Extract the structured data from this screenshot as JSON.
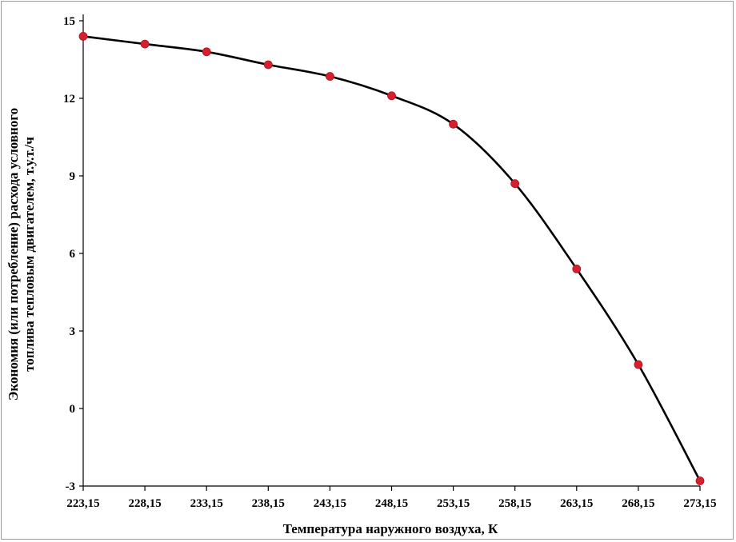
{
  "chart_data": {
    "type": "line",
    "x": [
      "223,15",
      "228,15",
      "233,15",
      "238,15",
      "243,15",
      "248,15",
      "253,15",
      "258,15",
      "263,15",
      "268,15",
      "273,15"
    ],
    "series": [
      {
        "values": [
          14.4,
          14.1,
          13.8,
          13.3,
          12.85,
          12.1,
          11.0,
          8.7,
          5.4,
          1.7,
          -2.8
        ]
      }
    ],
    "xlabel": "Температура наружного воздуха, К",
    "ylabel_lines": [
      "Экономия (или потребление) расхода условного",
      "топлива тепловым двигателем, т.у.т./ч"
    ],
    "ylim": [
      -3,
      15
    ],
    "yticks": [
      -3,
      0,
      3,
      6,
      9,
      12,
      15
    ],
    "grid": false,
    "line_color": "#000000",
    "marker_color": "#d7202f"
  }
}
